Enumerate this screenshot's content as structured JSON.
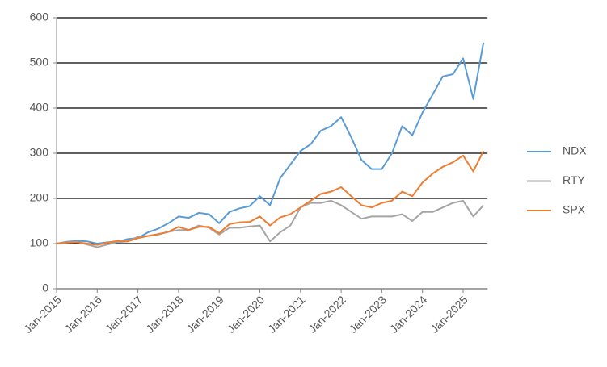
{
  "chart_data": {
    "type": "line",
    "categories": [
      "Jan-2015",
      null,
      null,
      null,
      "Jan-2016",
      null,
      null,
      null,
      "Jan-2017",
      null,
      null,
      null,
      "Jan-2018",
      null,
      null,
      null,
      "Jan-2019",
      null,
      null,
      null,
      "Jan-2020",
      null,
      null,
      null,
      "Jan-2021",
      null,
      null,
      null,
      "Jan-2022",
      null,
      null,
      null,
      "Jan-2023",
      null,
      null,
      null,
      "Jan-2024",
      null,
      null,
      null,
      "Jan-2025",
      null,
      null
    ],
    "series": [
      {
        "name": "NDX",
        "color": "#5b9bd5",
        "values": [
          100,
          104,
          106,
          105,
          100,
          103,
          104,
          110,
          112,
          125,
          133,
          145,
          160,
          157,
          168,
          165,
          145,
          170,
          178,
          183,
          205,
          185,
          245,
          275,
          305,
          320,
          350,
          360,
          380,
          335,
          285,
          265,
          265,
          300,
          360,
          340,
          390,
          430,
          470,
          475,
          510,
          420,
          545
        ]
      },
      {
        "name": "RTY",
        "color": "#a5a5a5",
        "values": [
          100,
          103,
          104,
          98,
          92,
          98,
          103,
          105,
          115,
          117,
          120,
          126,
          130,
          130,
          140,
          135,
          120,
          135,
          135,
          138,
          140,
          105,
          125,
          140,
          180,
          190,
          190,
          195,
          185,
          170,
          155,
          160,
          160,
          160,
          165,
          150,
          170,
          170,
          180,
          190,
          195,
          160,
          185
        ]
      },
      {
        "name": "SPX",
        "color": "#ed7d31",
        "values": [
          100,
          102,
          103,
          100,
          97,
          102,
          106,
          105,
          112,
          117,
          121,
          126,
          137,
          130,
          137,
          137,
          123,
          143,
          147,
          148,
          160,
          140,
          158,
          165,
          180,
          195,
          210,
          215,
          225,
          205,
          185,
          180,
          190,
          195,
          215,
          205,
          235,
          255,
          270,
          280,
          295,
          260,
          305
        ]
      }
    ],
    "ylim": [
      0,
      600
    ],
    "yticks": [
      0,
      100,
      200,
      300,
      400,
      500,
      600
    ],
    "grid": true,
    "legend": "right"
  }
}
